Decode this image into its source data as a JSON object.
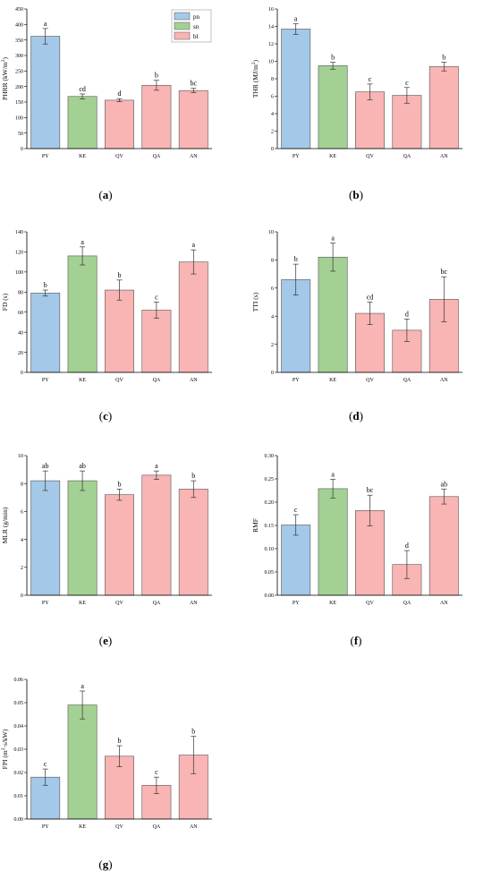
{
  "colors": {
    "pn": "#a4c8e8",
    "sn": "#a3d194",
    "bl": "#f9b4b4",
    "edge": "#555555",
    "error": "#333333",
    "axis": "#000000"
  },
  "legend": {
    "items": [
      {
        "key": "pn",
        "label": "pn"
      },
      {
        "key": "sn",
        "label": "sn"
      },
      {
        "key": "bl",
        "label": "bl"
      }
    ]
  },
  "chart_data": [
    {
      "id": "a",
      "type": "bar",
      "panel_label": "(a)",
      "categories": [
        "PY",
        "KE",
        "QV",
        "QA",
        "AN"
      ],
      "series_keys": [
        "pn",
        "sn",
        "bl",
        "bl",
        "bl"
      ],
      "values": [
        362,
        168,
        156,
        204,
        187
      ],
      "errors": [
        25,
        8,
        5,
        16,
        7
      ],
      "letters": [
        "a",
        "cd",
        "d",
        "b",
        "bc"
      ],
      "ylabel": "PHRR (kW/m²)",
      "ylim": [
        0,
        450
      ],
      "yticks": [
        0,
        50,
        100,
        150,
        200,
        250,
        300,
        350,
        400,
        450
      ],
      "ytick_labels": [
        "0",
        "50",
        "100",
        "150",
        "200",
        "250",
        "300",
        "350",
        "400",
        "450"
      ],
      "legend": true
    },
    {
      "id": "b",
      "type": "bar",
      "panel_label": "(b)",
      "categories": [
        "PY",
        "KE",
        "QV",
        "QA",
        "AN"
      ],
      "series_keys": [
        "pn",
        "sn",
        "bl",
        "bl",
        "bl"
      ],
      "values": [
        13.7,
        9.5,
        6.5,
        6.1,
        9.4
      ],
      "errors": [
        0.6,
        0.4,
        0.9,
        0.9,
        0.5
      ],
      "letters": [
        "a",
        "b",
        "c",
        "c",
        "b"
      ],
      "ylabel": "THR (MJ/m²)",
      "ylim": [
        0,
        16
      ],
      "yticks": [
        0,
        2,
        4,
        6,
        8,
        10,
        12,
        14,
        16
      ],
      "ytick_labels": [
        "0",
        "2",
        "4",
        "6",
        "8",
        "10",
        "12",
        "14",
        "16"
      ]
    },
    {
      "id": "c",
      "type": "bar",
      "panel_label": "(c)",
      "categories": [
        "PY",
        "KE",
        "QV",
        "QA",
        "AN"
      ],
      "series_keys": [
        "pn",
        "sn",
        "bl",
        "bl",
        "bl"
      ],
      "values": [
        79,
        116,
        82,
        62,
        110
      ],
      "errors": [
        3,
        9,
        10,
        8,
        12
      ],
      "letters": [
        "b",
        "a",
        "b",
        "c",
        "a"
      ],
      "ylabel": "FD (s)",
      "ylim": [
        0,
        140
      ],
      "yticks": [
        0,
        20,
        40,
        60,
        80,
        100,
        120,
        140
      ],
      "ytick_labels": [
        "0",
        "20",
        "40",
        "60",
        "80",
        "100",
        "120",
        "140"
      ]
    },
    {
      "id": "d",
      "type": "bar",
      "panel_label": "(d)",
      "categories": [
        "PY",
        "KE",
        "QV",
        "QA",
        "AN"
      ],
      "series_keys": [
        "pn",
        "sn",
        "bl",
        "bl",
        "bl"
      ],
      "values": [
        6.6,
        8.2,
        4.2,
        3.0,
        5.2
      ],
      "errors": [
        1.1,
        1.0,
        0.8,
        0.8,
        1.6
      ],
      "letters": [
        "b",
        "a",
        "cd",
        "d",
        "bc"
      ],
      "ylabel": "TTI (s)",
      "ylim": [
        0,
        10
      ],
      "yticks": [
        0,
        2,
        4,
        6,
        8,
        10
      ],
      "ytick_labels": [
        "0",
        "2",
        "4",
        "6",
        "8",
        "10"
      ]
    },
    {
      "id": "e",
      "type": "bar",
      "panel_label": "(e)",
      "categories": [
        "PY",
        "KE",
        "QV",
        "QA",
        "AN"
      ],
      "series_keys": [
        "pn",
        "sn",
        "bl",
        "bl",
        "bl"
      ],
      "values": [
        8.2,
        8.2,
        7.2,
        8.6,
        7.6
      ],
      "errors": [
        0.7,
        0.7,
        0.4,
        0.3,
        0.6
      ],
      "letters": [
        "ab",
        "ab",
        "b",
        "a",
        "b"
      ],
      "ylabel": "MLR (g/min)",
      "ylim": [
        0,
        10
      ],
      "yticks": [
        0,
        2,
        4,
        6,
        8,
        10
      ],
      "ytick_labels": [
        "0",
        "2",
        "4",
        "6",
        "8",
        "10"
      ]
    },
    {
      "id": "f",
      "type": "bar",
      "panel_label": "(f)",
      "categories": [
        "PY",
        "KE",
        "QV",
        "QA",
        "AN"
      ],
      "series_keys": [
        "pn",
        "sn",
        "bl",
        "bl",
        "bl"
      ],
      "values": [
        0.151,
        0.229,
        0.182,
        0.066,
        0.212
      ],
      "errors": [
        0.022,
        0.02,
        0.033,
        0.03,
        0.016
      ],
      "letters": [
        "c",
        "a",
        "bc",
        "d",
        "ab"
      ],
      "ylabel": "RMF",
      "ylim": [
        0,
        0.3
      ],
      "yticks": [
        0,
        0.05,
        0.1,
        0.15,
        0.2,
        0.25,
        0.3
      ],
      "ytick_labels": [
        "0.00",
        "0.05",
        "0.10",
        "0.15",
        "0.20",
        "0.25",
        "0.30"
      ]
    },
    {
      "id": "g",
      "type": "bar",
      "panel_label": "(g)",
      "categories": [
        "PY",
        "KE",
        "QV",
        "QA",
        "AN"
      ],
      "series_keys": [
        "pn",
        "sn",
        "bl",
        "bl",
        "bl"
      ],
      "values": [
        0.018,
        0.049,
        0.027,
        0.0145,
        0.0275
      ],
      "errors": [
        0.0035,
        0.006,
        0.0045,
        0.0035,
        0.008
      ],
      "letters": [
        "c",
        "a",
        "b",
        "c",
        "b"
      ],
      "ylabel": "FPI (m²·s/kW)",
      "ylim": [
        0,
        0.06
      ],
      "yticks": [
        0,
        0.01,
        0.02,
        0.03,
        0.04,
        0.05,
        0.06
      ],
      "ytick_labels": [
        "0.00",
        "0.01",
        "0.02",
        "0.03",
        "0.04",
        "0.05",
        "0.06"
      ]
    }
  ]
}
